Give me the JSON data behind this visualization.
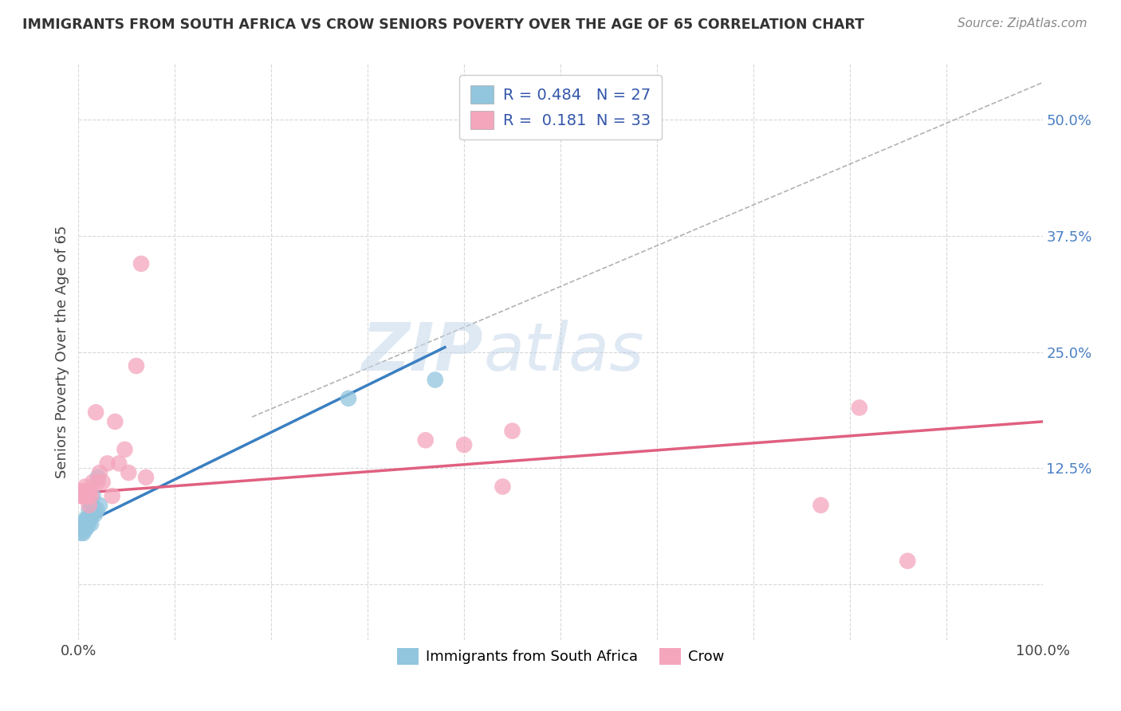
{
  "title": "IMMIGRANTS FROM SOUTH AFRICA VS CROW SENIORS POVERTY OVER THE AGE OF 65 CORRELATION CHART",
  "source": "Source: ZipAtlas.com",
  "ylabel": "Seniors Poverty Over the Age of 65",
  "xlim": [
    0.0,
    1.0
  ],
  "ylim": [
    -0.06,
    0.56
  ],
  "x_ticks": [
    0.0,
    0.1,
    0.2,
    0.3,
    0.4,
    0.5,
    0.6,
    0.7,
    0.8,
    0.9,
    1.0
  ],
  "legend_r1": "R = 0.484",
  "legend_n1": "N = 27",
  "legend_r2": "R =  0.181",
  "legend_n2": "N = 33",
  "color_blue": "#92c5de",
  "color_pink": "#f4a6bd",
  "watermark_zip": "ZIP",
  "watermark_atlas": "atlas",
  "blue_scatter_x": [
    0.002,
    0.003,
    0.004,
    0.005,
    0.005,
    0.006,
    0.006,
    0.007,
    0.007,
    0.008,
    0.008,
    0.009,
    0.009,
    0.01,
    0.01,
    0.011,
    0.012,
    0.013,
    0.013,
    0.014,
    0.015,
    0.017,
    0.019,
    0.02,
    0.022,
    0.28,
    0.37
  ],
  "blue_scatter_y": [
    0.06,
    0.055,
    0.06,
    0.065,
    0.055,
    0.06,
    0.065,
    0.06,
    0.07,
    0.06,
    0.065,
    0.065,
    0.07,
    0.065,
    0.07,
    0.08,
    0.07,
    0.065,
    0.075,
    0.085,
    0.095,
    0.075,
    0.08,
    0.115,
    0.085,
    0.2,
    0.22
  ],
  "pink_scatter_x": [
    0.002,
    0.003,
    0.004,
    0.005,
    0.006,
    0.007,
    0.008,
    0.009,
    0.01,
    0.011,
    0.012,
    0.013,
    0.015,
    0.018,
    0.02,
    0.022,
    0.025,
    0.03,
    0.035,
    0.038,
    0.042,
    0.048,
    0.052,
    0.06,
    0.065,
    0.07,
    0.36,
    0.4,
    0.44,
    0.45,
    0.77,
    0.81,
    0.86
  ],
  "pink_scatter_y": [
    0.095,
    0.1,
    0.095,
    0.095,
    0.1,
    0.105,
    0.095,
    0.1,
    0.095,
    0.085,
    0.1,
    0.095,
    0.11,
    0.185,
    0.11,
    0.12,
    0.11,
    0.13,
    0.095,
    0.175,
    0.13,
    0.145,
    0.12,
    0.235,
    0.345,
    0.115,
    0.155,
    0.15,
    0.105,
    0.165,
    0.085,
    0.19,
    0.025
  ],
  "blue_line_x": [
    0.0,
    0.38
  ],
  "blue_line_y": [
    0.062,
    0.255
  ],
  "pink_line_x": [
    0.0,
    1.0
  ],
  "pink_line_y": [
    0.098,
    0.175
  ],
  "dashed_line_x": [
    0.18,
    1.0
  ],
  "dashed_line_y": [
    0.18,
    0.54
  ],
  "grid_color": "#d8d8d8",
  "bg_color": "#ffffff",
  "right_ytick_vals": [
    0.0,
    0.125,
    0.25,
    0.375,
    0.5
  ],
  "right_ytick_labels": [
    "",
    "12.5%",
    "25.0%",
    "37.5%",
    "50.0%"
  ]
}
